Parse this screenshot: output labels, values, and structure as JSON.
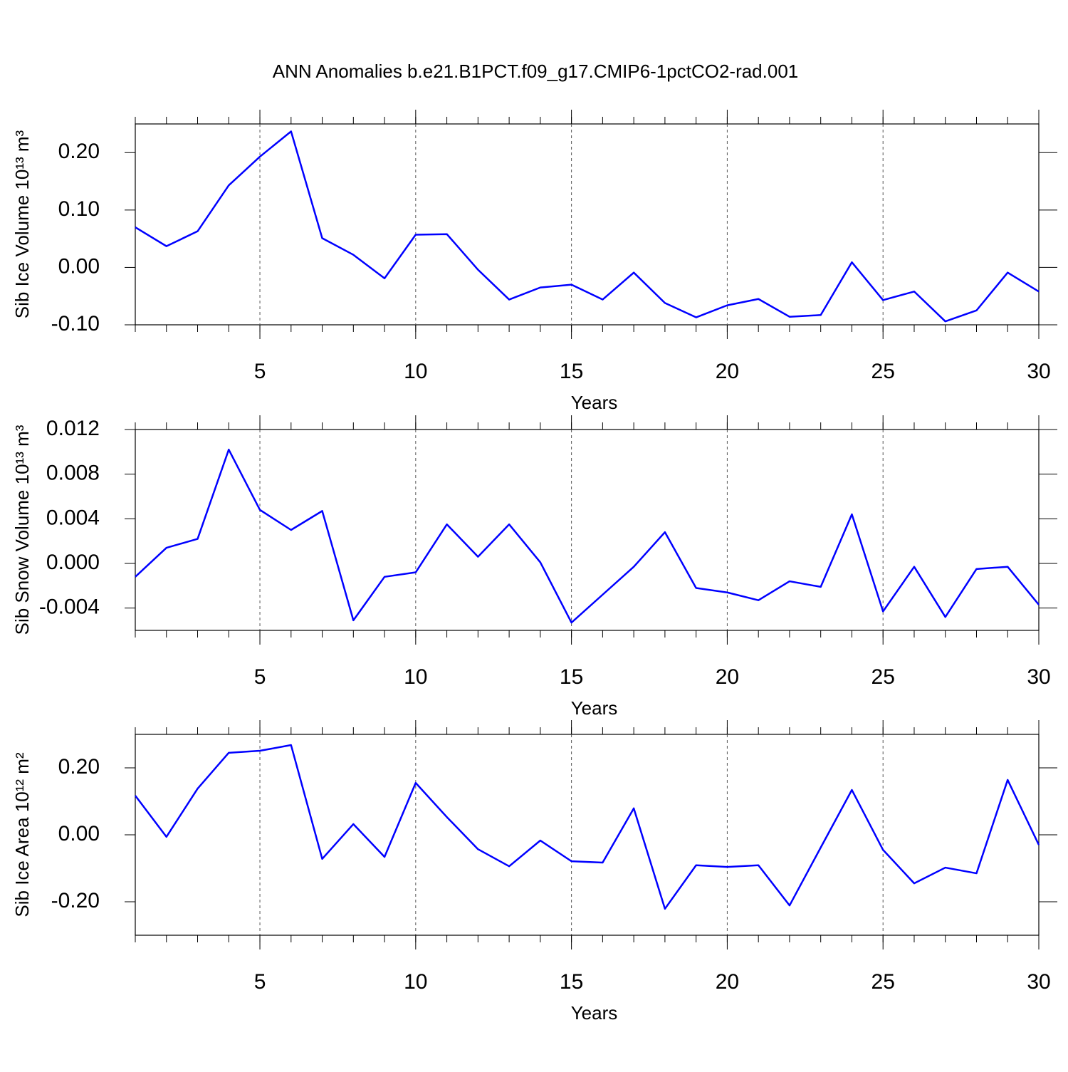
{
  "title": "ANN Anomalies b.e21.B1PCT.f09_g17.CMIP6-1pctCO2-rad.001",
  "chart_data": [
    {
      "type": "line",
      "xlabel": "Years",
      "ylabel": "Sib Ice Volume 10¹³ m³",
      "color": "#0000ff",
      "grid": true,
      "x": [
        1,
        2,
        3,
        4,
        5,
        6,
        7,
        8,
        9,
        10,
        11,
        12,
        13,
        14,
        15,
        16,
        17,
        18,
        19,
        20,
        21,
        22,
        23,
        24,
        25,
        26,
        27,
        28,
        29,
        30
      ],
      "values": [
        0.07,
        0.037,
        0.063,
        0.143,
        0.193,
        0.237,
        0.051,
        0.022,
        -0.019,
        0.057,
        0.058,
        -0.004,
        -0.056,
        -0.035,
        -0.03,
        -0.056,
        -0.009,
        -0.062,
        -0.087,
        -0.066,
        -0.055,
        -0.086,
        -0.083,
        0.009,
        -0.057,
        -0.042,
        -0.094,
        -0.075,
        -0.009,
        -0.042
      ],
      "xlim": [
        1,
        30
      ],
      "xticks": [
        5,
        10,
        15,
        20,
        25,
        30
      ],
      "ylim": [
        -0.1,
        0.25
      ],
      "yticks": [
        {
          "value": 0.2,
          "label": "0.20"
        },
        {
          "value": 0.1,
          "label": "0.10"
        },
        {
          "value": 0,
          "label": "0.00"
        },
        {
          "value": -0.1,
          "label": "-0.10"
        }
      ]
    },
    {
      "type": "line",
      "xlabel": "Years",
      "ylabel": "Sib Snow Volume 10¹³ m³",
      "color": "#0000ff",
      "grid": true,
      "x": [
        1,
        2,
        3,
        4,
        5,
        6,
        7,
        8,
        9,
        10,
        11,
        12,
        13,
        14,
        15,
        16,
        17,
        18,
        19,
        20,
        21,
        22,
        23,
        24,
        25,
        26,
        27,
        28,
        29,
        30
      ],
      "values": [
        -0.0012,
        0.0014,
        0.0022,
        0.0102,
        0.0048,
        0.003,
        0.0047,
        -0.0051,
        -0.0012,
        -0.0008,
        0.0035,
        0.0006,
        0.0035,
        0.0001,
        -0.0053,
        -0.0028,
        -0.0003,
        0.0028,
        -0.0022,
        -0.0026,
        -0.0033,
        -0.0016,
        -0.0021,
        0.0044,
        -0.0043,
        -0.0003,
        -0.0048,
        -0.0005,
        -0.0003,
        -0.0037
      ],
      "xlim": [
        1,
        30
      ],
      "xticks": [
        5,
        10,
        15,
        20,
        25,
        30
      ],
      "ylim": [
        -0.006,
        0.012
      ],
      "yticks": [
        {
          "value": 0.012,
          "label": "0.012"
        },
        {
          "value": 0.008,
          "label": "0.008"
        },
        {
          "value": 0.004,
          "label": "0.004"
        },
        {
          "value": 0,
          "label": "0.000"
        },
        {
          "value": -0.004,
          "label": "-0.004"
        }
      ]
    },
    {
      "type": "line",
      "xlabel": "Years",
      "ylabel": "Sib Ice Area 10¹² m²",
      "color": "#0000ff",
      "grid": true,
      "x": [
        1,
        2,
        3,
        4,
        5,
        6,
        7,
        8,
        9,
        10,
        11,
        12,
        13,
        14,
        15,
        16,
        17,
        18,
        19,
        20,
        21,
        22,
        23,
        24,
        25,
        26,
        27,
        28,
        29,
        30
      ],
      "values": [
        0.117,
        -0.006,
        0.138,
        0.245,
        0.251,
        0.268,
        -0.072,
        0.032,
        -0.066,
        0.155,
        0.053,
        -0.043,
        -0.094,
        -0.017,
        -0.079,
        -0.083,
        0.079,
        -0.221,
        -0.091,
        -0.096,
        -0.091,
        -0.211,
        -0.038,
        0.134,
        -0.045,
        -0.145,
        -0.098,
        -0.115,
        0.164,
        -0.03
      ],
      "xlim": [
        1,
        30
      ],
      "xticks": [
        5,
        10,
        15,
        20,
        25,
        30
      ],
      "ylim": [
        -0.3,
        0.3
      ],
      "yticks": [
        {
          "value": 0.2,
          "label": "0.20"
        },
        {
          "value": 0,
          "label": "0.00"
        },
        {
          "value": -0.2,
          "label": "-0.20"
        }
      ]
    }
  ]
}
